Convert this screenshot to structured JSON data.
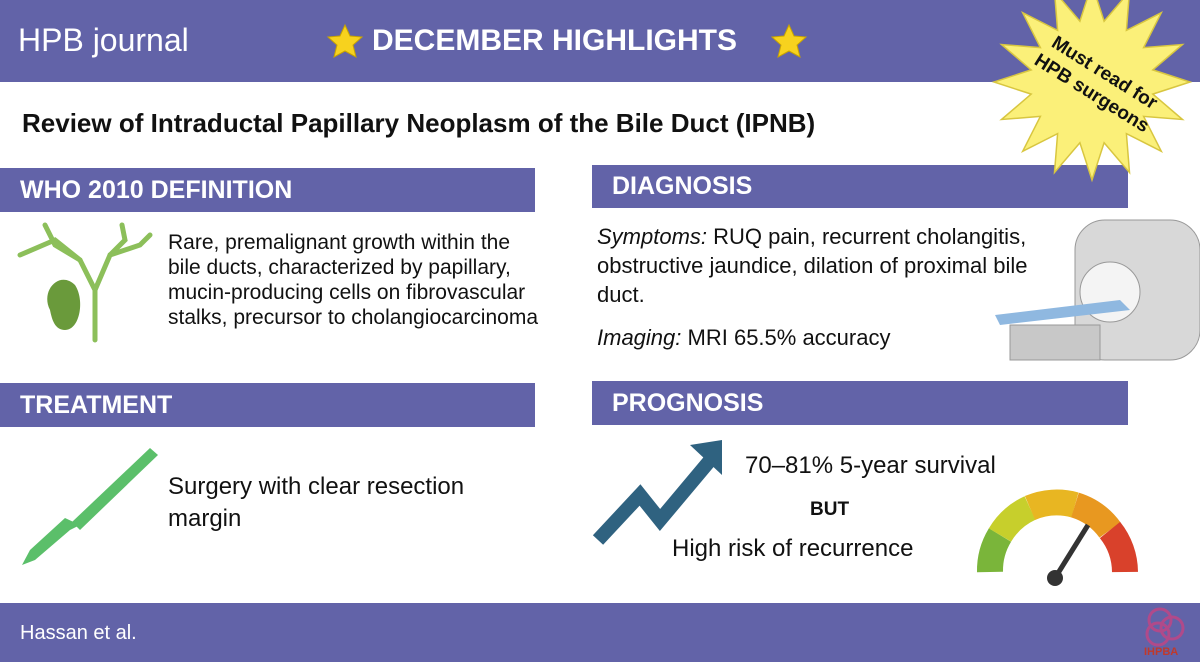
{
  "header": {
    "journal": "HPB journal",
    "banner": "DECEMBER HIGHLIGHTS",
    "badge": [
      "Must read for",
      "HPB surgeons"
    ]
  },
  "title": "Review of Intraductal Papillary Neoplasm of the Bile Duct (IPNB)",
  "definition": {
    "heading": "WHO 2010 DEFINITION",
    "text": "Rare, premalignant growth within the bile ducts, characterized by papillary, mucin-producing cells on fibrovascular stalks, precursor to cholangiocarcinoma"
  },
  "diagnosis": {
    "heading": "DIAGNOSIS",
    "symptoms_label": "Symptoms:",
    "symptoms": "RUQ pain, recurrent cholangitis, obstructive jaundice, dilation of  proximal bile duct.",
    "imaging_label": "Imaging:",
    "imaging": "MRI 65.5% accuracy"
  },
  "treatment": {
    "heading": "TREATMENT",
    "text": "Surgery with clear resection margin"
  },
  "prognosis": {
    "heading": "PROGNOSIS",
    "survival": "70–81% 5-year survival",
    "but": "BUT",
    "risk": "High risk of recurrence"
  },
  "footer": {
    "authors": "Hassan et al.",
    "logo": "IHPBA"
  }
}
